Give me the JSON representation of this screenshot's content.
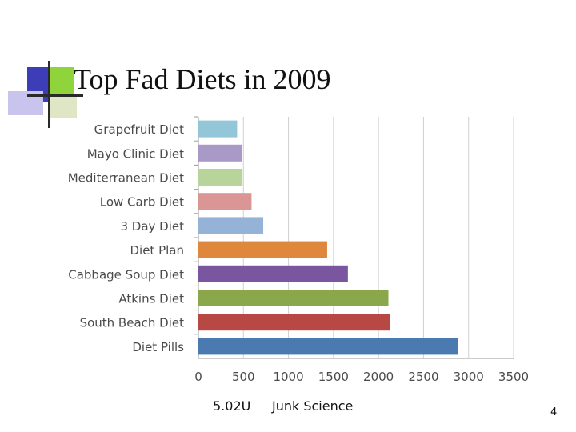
{
  "slide": {
    "title": "Top Fad Diets in 2009",
    "footer_left": "5.02U",
    "footer_center": "Junk Science",
    "page_number": "4"
  },
  "chart_data": {
    "type": "bar",
    "orientation": "horizontal",
    "title": "",
    "xlabel": "",
    "ylabel": "",
    "xlim": [
      0,
      3500
    ],
    "xticks": [
      0,
      500,
      1000,
      1500,
      2000,
      2500,
      3000,
      3500
    ],
    "grid": true,
    "categories": [
      "Grapefruit Diet",
      "Mayo Clinic Diet",
      "Mediterranean Diet",
      "Low Carb Diet",
      "3 Day Diet",
      "Diet Plan",
      "Cabbage Soup Diet",
      "Atkins Diet",
      "South Beach Diet",
      "Diet Pills"
    ],
    "values": [
      430,
      480,
      490,
      590,
      720,
      1430,
      1660,
      2110,
      2130,
      2880
    ],
    "colors": [
      "#93c6d8",
      "#a999c6",
      "#b9d49a",
      "#d99694",
      "#95b3d7",
      "#e0873e",
      "#7a56a0",
      "#8aa84b",
      "#b84844",
      "#4a7ab0"
    ]
  }
}
